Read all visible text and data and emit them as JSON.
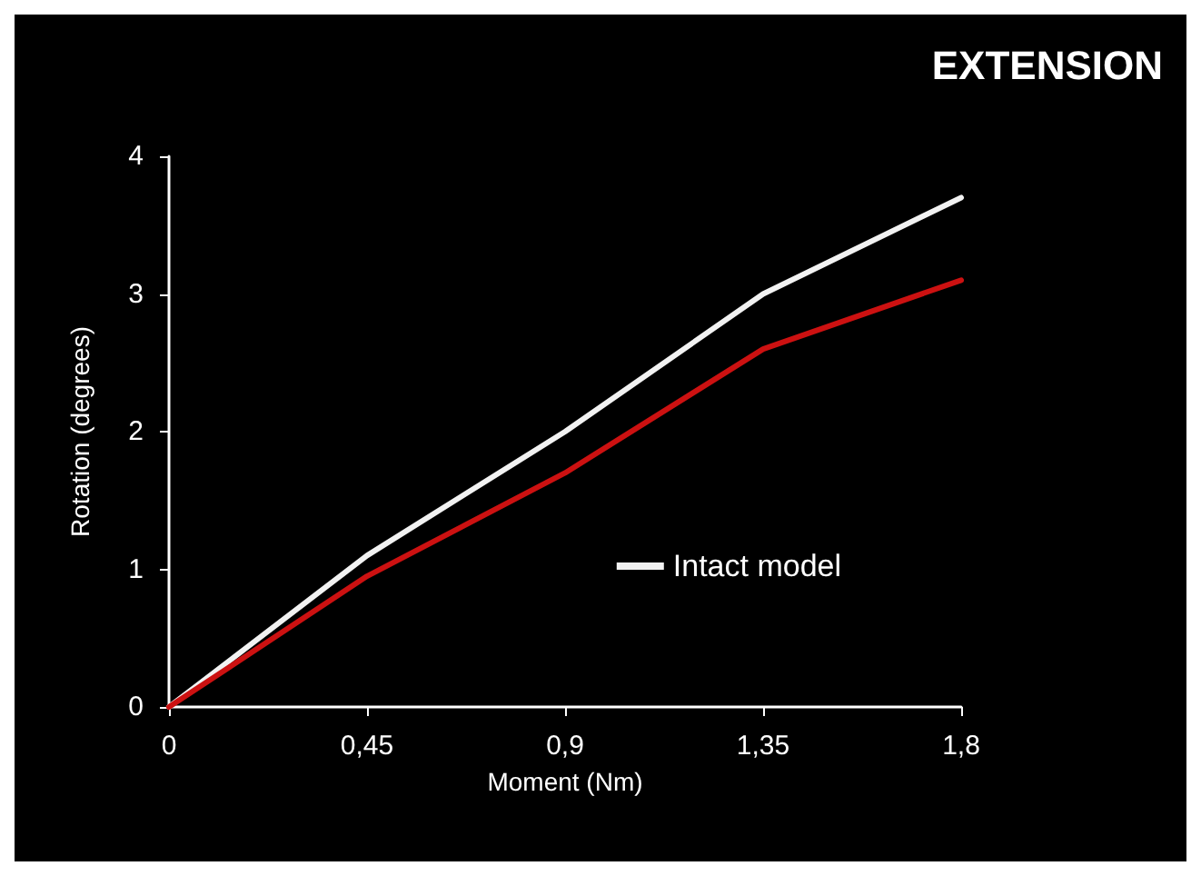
{
  "chart_data": {
    "type": "line",
    "title": "EXTENSION",
    "xlabel": "Moment (Nm)",
    "ylabel": "Rotation (degrees)",
    "x": [
      0,
      0.45,
      0.9,
      1.35,
      1.8
    ],
    "series": [
      {
        "name": "Intact model",
        "color": "#f2f2f2",
        "values": [
          0,
          1.1,
          2.0,
          3.0,
          3.7
        ]
      },
      {
        "color": "#cc1111",
        "values": [
          0,
          0.95,
          1.7,
          2.6,
          3.1
        ]
      }
    ],
    "xlim": [
      0,
      1.8
    ],
    "xticks": [
      0,
      {
        "value": 0.45,
        "label": "0,45"
      },
      {
        "value": 0.9,
        "label": "0,9"
      },
      {
        "value": 1.35,
        "label": "1,35"
      },
      {
        "value": 1.8,
        "label": "1,8"
      }
    ],
    "ylim": [
      0,
      4
    ],
    "yticks": [
      0,
      1,
      2,
      3,
      4
    ],
    "grid": false,
    "legend": "bottom right",
    "marker": "none",
    "line_style": "solid"
  }
}
